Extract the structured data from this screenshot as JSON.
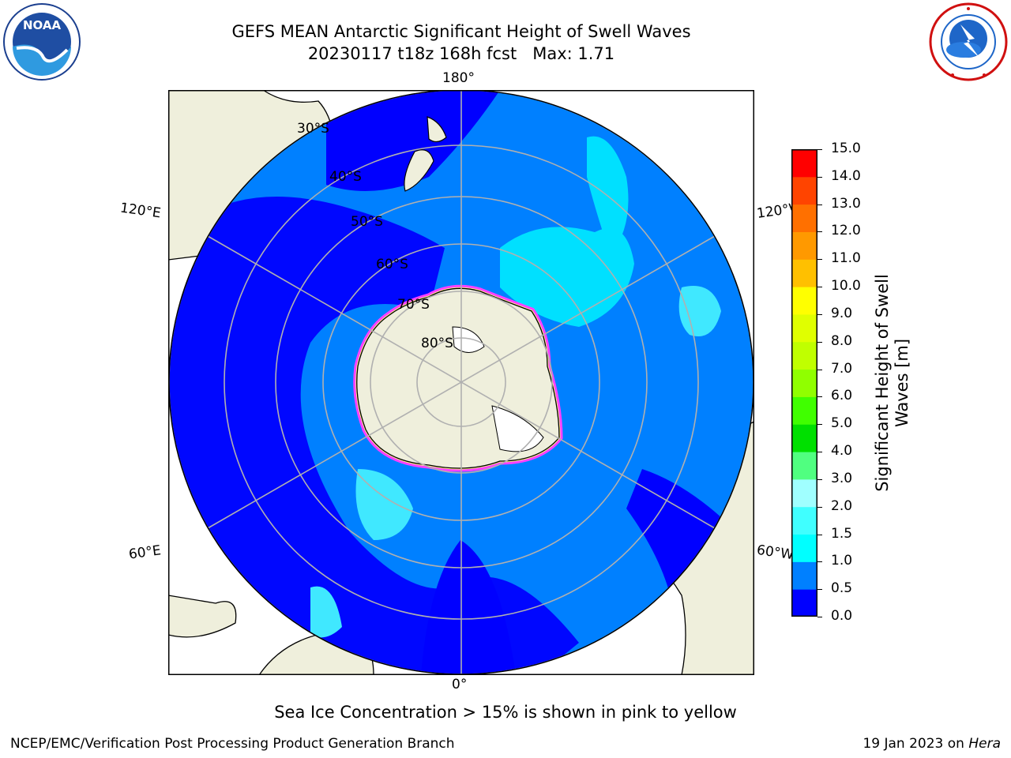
{
  "title": {
    "line1": "GEFS MEAN Antarctic Significant Height of Swell Waves",
    "line2": "20230117 t18z 168h fcst   Max: 1.71"
  },
  "logos": {
    "noaa": {
      "text": "NOAA",
      "ring_text": "NATIONAL OCEANIC AND ATMOSPHERIC ADMINISTRATION · U.S. DEPARTMENT OF COMMERCE"
    },
    "nws": {
      "ring_text": "NATIONAL WEATHER SERVICE"
    }
  },
  "map": {
    "projection": "south-polar-stereographic",
    "longitude_labels": {
      "top": "180°",
      "bottom": "0°",
      "upper_left": "120°E",
      "lower_left": "60°E",
      "upper_right": "120°W",
      "lower_right": "60°W"
    },
    "latitude_labels": [
      "30°S",
      "40°S",
      "50°S",
      "60°S",
      "70°S",
      "80°S"
    ],
    "colors": {
      "ocean_low": "#0000ff",
      "ocean_mid": "#0080ff",
      "ocean_high": "#00e0ff",
      "ocean_higher": "#40f0f0",
      "land": "#efefdc",
      "ice_edge": "#ff40ff",
      "ice_core": "#ffff80",
      "grid": "#b0b0b0"
    }
  },
  "colorbar": {
    "label": "Significant Height of Swell Waves [m]",
    "label_lines": [
      "Significant Height of Swell",
      "Waves [m]"
    ],
    "ticks": [
      "0.0",
      "0.5",
      "1.0",
      "1.5",
      "2.0",
      "3.0",
      "4.0",
      "5.0",
      "6.0",
      "7.0",
      "8.0",
      "9.0",
      "10.0",
      "11.0",
      "12.0",
      "13.0",
      "14.0",
      "15.0"
    ],
    "colors": [
      "#0000ff",
      "#0080ff",
      "#00ffff",
      "#40ffff",
      "#a0ffff",
      "#50ff80",
      "#00e000",
      "#40ff00",
      "#90ff00",
      "#c0ff00",
      "#e0ff00",
      "#ffff00",
      "#ffc000",
      "#ff9900",
      "#ff7000",
      "#ff4400",
      "#ff0000"
    ]
  },
  "ice_note": "Sea Ice Concentration > 15% is shown in pink to yellow",
  "footer": {
    "left": "NCEP/EMC/Verification Post Processing Product Generation Branch",
    "right_date": "19 Jan 2023 on",
    "right_host": "Hera"
  }
}
